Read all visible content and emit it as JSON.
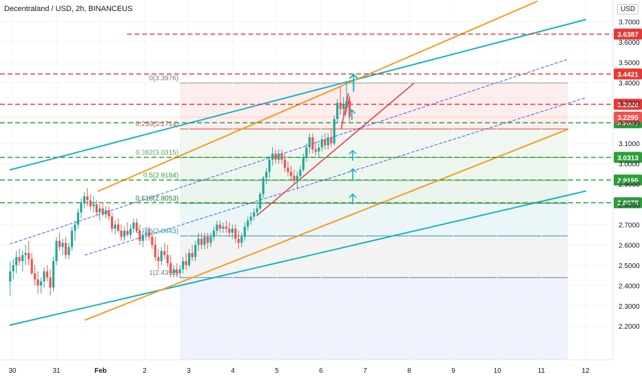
{
  "header": {
    "symbol_title": "Decentraland / USD, 2h, BINANCEUS",
    "currency_button": "USD"
  },
  "colors": {
    "bull": "#26a69a",
    "bear": "#ef5350",
    "orange": "#f29d1c",
    "teal": "#12b3c4",
    "red_dash": "#e53935",
    "green_dash": "#2e9d3a",
    "blue_dash": "#3d5afe",
    "redline": "#e6344a"
  },
  "chart_data": {
    "type": "candlestick",
    "symbol": "Decentraland / USD",
    "interval": "2h",
    "exchange": "BINANCEUS",
    "x_ticks": [
      {
        "label": "30",
        "x": 0.0
      },
      {
        "label": "31",
        "x": 1.0
      },
      {
        "label": "Feb",
        "x": 2.0
      },
      {
        "label": "2",
        "x": 3.0
      },
      {
        "label": "3",
        "x": 4.0
      },
      {
        "label": "4",
        "x": 5.0
      },
      {
        "label": "5",
        "x": 6.0
      },
      {
        "label": "6",
        "x": 7.0
      },
      {
        "label": "7",
        "x": 8.0
      },
      {
        "label": "8",
        "x": 9.0
      },
      {
        "label": "9",
        "x": 10.0
      },
      {
        "label": "10",
        "x": 11.0
      },
      {
        "label": "11",
        "x": 12.0
      },
      {
        "label": "12",
        "x": 13.0
      }
    ],
    "y_ticks": [
      2.2,
      2.3,
      2.4,
      2.5,
      2.6,
      2.7,
      2.8,
      2.9,
      3.0,
      3.1,
      3.2,
      3.3,
      3.4,
      3.5,
      3.6,
      3.7
    ],
    "ylim": [
      2.12,
      3.8
    ],
    "price_levels": [
      {
        "label": "3.6387",
        "value": 3.6387,
        "color": "#e53935",
        "style": "dashed"
      },
      {
        "label": "3.4421",
        "value": 3.4421,
        "color": "#e53935",
        "style": "dashed"
      },
      {
        "label": "3.2928",
        "value": 3.2928,
        "color": "#e53935",
        "style": "dashed"
      },
      {
        "label": "3.2021",
        "value": 3.2021,
        "color": "#2e9d3a",
        "style": "dashed"
      },
      {
        "label": "3.0313",
        "value": 3.0313,
        "color": "#2e9d3a",
        "style": "dashed"
      },
      {
        "label": "2.9195",
        "value": 2.9195,
        "color": "#2e9d3a",
        "style": "dashed"
      },
      {
        "label": "2.8078",
        "value": 2.8078,
        "color": "#2e9d3a",
        "style": "dashed"
      }
    ],
    "last_price": {
      "label": "3.2295",
      "value": 3.2295
    },
    "fib_levels": [
      {
        "label": "0(3.3976)",
        "value": 3.3976,
        "color": "#787b86"
      },
      {
        "label": "0.236(3.1714)",
        "value": 3.1714,
        "color": "#e53935"
      },
      {
        "label": "0.382(3.0315)",
        "value": 3.0315,
        "color": "#5aa05a"
      },
      {
        "label": "0.5(2.9184)",
        "value": 2.9184,
        "color": "#2e9d3a"
      },
      {
        "label": "0.618(2.8053)",
        "value": 2.8053,
        "color": "#1b7a2a"
      },
      {
        "label": "0.786(2.6443)",
        "value": 2.6443,
        "color": "#2196b0"
      },
      {
        "label": "1(2.4392)",
        "value": 2.4392,
        "color": "#787b86"
      }
    ],
    "fib_range_x": [
      3.8,
      12.6
    ],
    "trend_lines": [
      {
        "name": "teal-upper",
        "color": "#12b3c4",
        "width": 2,
        "p1": [
          -0.05,
          2.97
        ],
        "p2": [
          13.0,
          3.71
        ]
      },
      {
        "name": "teal-lower",
        "color": "#12b3c4",
        "width": 2,
        "p1": [
          -0.05,
          2.205
        ],
        "p2": [
          13.0,
          2.865
        ]
      },
      {
        "name": "orange-upper",
        "color": "#f29d1c",
        "width": 2,
        "p1": [
          1.95,
          2.865
        ],
        "p2": [
          11.9,
          3.8
        ]
      },
      {
        "name": "orange-lower",
        "color": "#f29d1c",
        "width": 2,
        "p1": [
          1.65,
          2.23
        ],
        "p2": [
          12.6,
          3.17
        ]
      },
      {
        "name": "blue-dash-1",
        "color": "#3d5afe",
        "width": 1,
        "dash": true,
        "p1": [
          -0.05,
          2.605
        ],
        "p2": [
          12.6,
          3.515
        ]
      },
      {
        "name": "blue-dash-2",
        "color": "#3d5afe",
        "width": 1,
        "dash": true,
        "p1": [
          1.65,
          2.55
        ],
        "p2": [
          13.0,
          3.325
        ]
      },
      {
        "name": "red-up",
        "color": "#e6344a",
        "width": 1.5,
        "p1": [
          5.55,
          2.745
        ],
        "p2": [
          9.1,
          3.395
        ]
      },
      {
        "name": "red-short-1",
        "color": "#e6344a",
        "width": 1.5,
        "p1": [
          7.46,
          3.175
        ],
        "p2": [
          7.62,
          3.345
        ]
      },
      {
        "name": "red-short-2",
        "color": "#e6344a",
        "width": 1.5,
        "p1": [
          7.55,
          3.24
        ],
        "p2": [
          7.65,
          3.33
        ]
      }
    ],
    "arrows": [
      {
        "x": 7.74,
        "y_from": 3.355,
        "y_to": 3.44,
        "size": "large"
      },
      {
        "x": 7.7,
        "y_from": 3.215,
        "y_to": 3.265,
        "size": "small"
      },
      {
        "x": 7.72,
        "y_from": 3.015,
        "y_to": 3.065,
        "size": "small"
      },
      {
        "x": 7.72,
        "y_from": 2.915,
        "y_to": 2.975,
        "size": "small"
      },
      {
        "x": 7.72,
        "y_from": 2.8,
        "y_to": 2.85,
        "size": "small"
      }
    ],
    "candles": [
      {
        "x": -0.05,
        "o": 2.42,
        "h": 2.52,
        "l": 2.35,
        "c": 2.47
      },
      {
        "x": 0.02,
        "o": 2.47,
        "h": 2.53,
        "l": 2.43,
        "c": 2.5
      },
      {
        "x": 0.09,
        "o": 2.5,
        "h": 2.57,
        "l": 2.46,
        "c": 2.54
      },
      {
        "x": 0.16,
        "o": 2.54,
        "h": 2.58,
        "l": 2.5,
        "c": 2.52
      },
      {
        "x": 0.23,
        "o": 2.52,
        "h": 2.57,
        "l": 2.47,
        "c": 2.55
      },
      {
        "x": 0.3,
        "o": 2.55,
        "h": 2.6,
        "l": 2.5,
        "c": 2.56
      },
      {
        "x": 0.37,
        "o": 2.56,
        "h": 2.62,
        "l": 2.5,
        "c": 2.53
      },
      {
        "x": 0.44,
        "o": 2.53,
        "h": 2.56,
        "l": 2.45,
        "c": 2.46
      },
      {
        "x": 0.51,
        "o": 2.46,
        "h": 2.5,
        "l": 2.4,
        "c": 2.43
      },
      {
        "x": 0.58,
        "o": 2.43,
        "h": 2.47,
        "l": 2.36,
        "c": 2.4
      },
      {
        "x": 0.65,
        "o": 2.4,
        "h": 2.44,
        "l": 2.36,
        "c": 2.42
      },
      {
        "x": 0.72,
        "o": 2.42,
        "h": 2.49,
        "l": 2.39,
        "c": 2.47
      },
      {
        "x": 0.79,
        "o": 2.47,
        "h": 2.5,
        "l": 2.42,
        "c": 2.44
      },
      {
        "x": 0.86,
        "o": 2.44,
        "h": 2.48,
        "l": 2.35,
        "c": 2.39
      },
      {
        "x": 0.93,
        "o": 2.39,
        "h": 2.54,
        "l": 2.37,
        "c": 2.52
      },
      {
        "x": 1.0,
        "o": 2.52,
        "h": 2.64,
        "l": 2.5,
        "c": 2.62
      },
      {
        "x": 1.07,
        "o": 2.62,
        "h": 2.66,
        "l": 2.57,
        "c": 2.59
      },
      {
        "x": 1.14,
        "o": 2.59,
        "h": 2.63,
        "l": 2.55,
        "c": 2.61
      },
      {
        "x": 1.21,
        "o": 2.61,
        "h": 2.64,
        "l": 2.53,
        "c": 2.55
      },
      {
        "x": 1.28,
        "o": 2.55,
        "h": 2.61,
        "l": 2.53,
        "c": 2.59
      },
      {
        "x": 1.35,
        "o": 2.59,
        "h": 2.69,
        "l": 2.57,
        "c": 2.67
      },
      {
        "x": 1.42,
        "o": 2.67,
        "h": 2.72,
        "l": 2.62,
        "c": 2.7
      },
      {
        "x": 1.49,
        "o": 2.7,
        "h": 2.78,
        "l": 2.68,
        "c": 2.76
      },
      {
        "x": 1.56,
        "o": 2.76,
        "h": 2.83,
        "l": 2.73,
        "c": 2.81
      },
      {
        "x": 1.63,
        "o": 2.81,
        "h": 2.86,
        "l": 2.78,
        "c": 2.84
      },
      {
        "x": 1.7,
        "o": 2.84,
        "h": 2.88,
        "l": 2.79,
        "c": 2.82
      },
      {
        "x": 1.77,
        "o": 2.82,
        "h": 2.85,
        "l": 2.77,
        "c": 2.79
      },
      {
        "x": 1.84,
        "o": 2.79,
        "h": 2.84,
        "l": 2.76,
        "c": 2.8
      },
      {
        "x": 1.91,
        "o": 2.8,
        "h": 2.82,
        "l": 2.74,
        "c": 2.76
      },
      {
        "x": 1.98,
        "o": 2.76,
        "h": 2.8,
        "l": 2.72,
        "c": 2.78
      },
      {
        "x": 2.05,
        "o": 2.78,
        "h": 2.81,
        "l": 2.74,
        "c": 2.75
      },
      {
        "x": 2.12,
        "o": 2.75,
        "h": 2.79,
        "l": 2.73,
        "c": 2.77
      },
      {
        "x": 2.19,
        "o": 2.77,
        "h": 2.79,
        "l": 2.72,
        "c": 2.74
      },
      {
        "x": 2.26,
        "o": 2.74,
        "h": 2.76,
        "l": 2.66,
        "c": 2.68
      },
      {
        "x": 2.33,
        "o": 2.68,
        "h": 2.72,
        "l": 2.65,
        "c": 2.7
      },
      {
        "x": 2.4,
        "o": 2.7,
        "h": 2.73,
        "l": 2.66,
        "c": 2.67
      },
      {
        "x": 2.47,
        "o": 2.67,
        "h": 2.7,
        "l": 2.62,
        "c": 2.64
      },
      {
        "x": 2.54,
        "o": 2.64,
        "h": 2.69,
        "l": 2.62,
        "c": 2.67
      },
      {
        "x": 2.61,
        "o": 2.67,
        "h": 2.71,
        "l": 2.64,
        "c": 2.65
      },
      {
        "x": 2.68,
        "o": 2.65,
        "h": 2.7,
        "l": 2.63,
        "c": 2.68
      },
      {
        "x": 2.75,
        "o": 2.68,
        "h": 2.73,
        "l": 2.66,
        "c": 2.71
      },
      {
        "x": 2.82,
        "o": 2.71,
        "h": 2.73,
        "l": 2.66,
        "c": 2.67
      },
      {
        "x": 2.89,
        "o": 2.67,
        "h": 2.7,
        "l": 2.6,
        "c": 2.62
      },
      {
        "x": 2.96,
        "o": 2.62,
        "h": 2.67,
        "l": 2.59,
        "c": 2.65
      },
      {
        "x": 3.03,
        "o": 2.65,
        "h": 2.69,
        "l": 2.62,
        "c": 2.66
      },
      {
        "x": 3.1,
        "o": 2.66,
        "h": 2.69,
        "l": 2.62,
        "c": 2.64
      },
      {
        "x": 3.17,
        "o": 2.64,
        "h": 2.67,
        "l": 2.58,
        "c": 2.6
      },
      {
        "x": 3.24,
        "o": 2.6,
        "h": 2.64,
        "l": 2.52,
        "c": 2.54
      },
      {
        "x": 3.31,
        "o": 2.54,
        "h": 2.58,
        "l": 2.48,
        "c": 2.52
      },
      {
        "x": 3.38,
        "o": 2.52,
        "h": 2.59,
        "l": 2.5,
        "c": 2.57
      },
      {
        "x": 3.45,
        "o": 2.57,
        "h": 2.61,
        "l": 2.53,
        "c": 2.55
      },
      {
        "x": 3.52,
        "o": 2.55,
        "h": 2.6,
        "l": 2.49,
        "c": 2.51
      },
      {
        "x": 3.59,
        "o": 2.51,
        "h": 2.55,
        "l": 2.44,
        "c": 2.46
      },
      {
        "x": 3.66,
        "o": 2.46,
        "h": 2.5,
        "l": 2.44,
        "c": 2.48
      },
      {
        "x": 3.73,
        "o": 2.48,
        "h": 2.51,
        "l": 2.44,
        "c": 2.46
      },
      {
        "x": 3.8,
        "o": 2.46,
        "h": 2.5,
        "l": 2.44,
        "c": 2.48
      },
      {
        "x": 3.87,
        "o": 2.48,
        "h": 2.54,
        "l": 2.46,
        "c": 2.52
      },
      {
        "x": 3.94,
        "o": 2.52,
        "h": 2.56,
        "l": 2.48,
        "c": 2.5
      },
      {
        "x": 4.01,
        "o": 2.5,
        "h": 2.58,
        "l": 2.49,
        "c": 2.56
      },
      {
        "x": 4.08,
        "o": 2.56,
        "h": 2.6,
        "l": 2.52,
        "c": 2.54
      },
      {
        "x": 4.15,
        "o": 2.54,
        "h": 2.62,
        "l": 2.52,
        "c": 2.6
      },
      {
        "x": 4.22,
        "o": 2.6,
        "h": 2.66,
        "l": 2.57,
        "c": 2.63
      },
      {
        "x": 4.29,
        "o": 2.63,
        "h": 2.66,
        "l": 2.58,
        "c": 2.6
      },
      {
        "x": 4.36,
        "o": 2.6,
        "h": 2.66,
        "l": 2.58,
        "c": 2.64
      },
      {
        "x": 4.43,
        "o": 2.64,
        "h": 2.66,
        "l": 2.58,
        "c": 2.61
      },
      {
        "x": 4.5,
        "o": 2.61,
        "h": 2.66,
        "l": 2.59,
        "c": 2.64
      },
      {
        "x": 4.57,
        "o": 2.64,
        "h": 2.69,
        "l": 2.62,
        "c": 2.67
      },
      {
        "x": 4.64,
        "o": 2.67,
        "h": 2.72,
        "l": 2.65,
        "c": 2.7
      },
      {
        "x": 4.71,
        "o": 2.7,
        "h": 2.72,
        "l": 2.66,
        "c": 2.68
      },
      {
        "x": 4.78,
        "o": 2.68,
        "h": 2.71,
        "l": 2.66,
        "c": 2.69
      },
      {
        "x": 4.85,
        "o": 2.69,
        "h": 2.72,
        "l": 2.66,
        "c": 2.68
      },
      {
        "x": 4.92,
        "o": 2.68,
        "h": 2.71,
        "l": 2.64,
        "c": 2.66
      },
      {
        "x": 4.99,
        "o": 2.66,
        "h": 2.7,
        "l": 2.63,
        "c": 2.68
      },
      {
        "x": 5.06,
        "o": 2.68,
        "h": 2.7,
        "l": 2.61,
        "c": 2.63
      },
      {
        "x": 5.13,
        "o": 2.63,
        "h": 2.67,
        "l": 2.58,
        "c": 2.61
      },
      {
        "x": 5.2,
        "o": 2.61,
        "h": 2.66,
        "l": 2.59,
        "c": 2.64
      },
      {
        "x": 5.27,
        "o": 2.64,
        "h": 2.71,
        "l": 2.62,
        "c": 2.69
      },
      {
        "x": 5.34,
        "o": 2.69,
        "h": 2.74,
        "l": 2.67,
        "c": 2.72
      },
      {
        "x": 5.41,
        "o": 2.72,
        "h": 2.76,
        "l": 2.7,
        "c": 2.74
      },
      {
        "x": 5.48,
        "o": 2.74,
        "h": 2.78,
        "l": 2.72,
        "c": 2.76
      },
      {
        "x": 5.55,
        "o": 2.76,
        "h": 2.8,
        "l": 2.74,
        "c": 2.78
      },
      {
        "x": 5.62,
        "o": 2.78,
        "h": 2.86,
        "l": 2.77,
        "c": 2.85
      },
      {
        "x": 5.69,
        "o": 2.85,
        "h": 2.94,
        "l": 2.83,
        "c": 2.93
      },
      {
        "x": 5.76,
        "o": 2.93,
        "h": 2.98,
        "l": 2.9,
        "c": 2.96
      },
      {
        "x": 5.83,
        "o": 2.96,
        "h": 3.04,
        "l": 2.93,
        "c": 3.02
      },
      {
        "x": 5.9,
        "o": 3.02,
        "h": 3.08,
        "l": 2.99,
        "c": 3.05
      },
      {
        "x": 5.97,
        "o": 3.05,
        "h": 3.07,
        "l": 3.0,
        "c": 3.02
      },
      {
        "x": 6.04,
        "o": 3.02,
        "h": 3.07,
        "l": 3.0,
        "c": 3.05
      },
      {
        "x": 6.11,
        "o": 3.05,
        "h": 3.07,
        "l": 3.0,
        "c": 3.02
      },
      {
        "x": 6.18,
        "o": 3.02,
        "h": 3.05,
        "l": 2.96,
        "c": 2.98
      },
      {
        "x": 6.25,
        "o": 2.98,
        "h": 3.01,
        "l": 2.94,
        "c": 2.96
      },
      {
        "x": 6.32,
        "o": 2.96,
        "h": 2.99,
        "l": 2.92,
        "c": 2.94
      },
      {
        "x": 6.39,
        "o": 2.94,
        "h": 2.97,
        "l": 2.9,
        "c": 2.92
      },
      {
        "x": 6.46,
        "o": 2.92,
        "h": 2.96,
        "l": 2.88,
        "c": 2.94
      },
      {
        "x": 6.53,
        "o": 2.94,
        "h": 2.99,
        "l": 2.92,
        "c": 2.97
      },
      {
        "x": 6.6,
        "o": 2.97,
        "h": 3.05,
        "l": 2.96,
        "c": 3.03
      },
      {
        "x": 6.67,
        "o": 3.03,
        "h": 3.1,
        "l": 3.01,
        "c": 3.08
      },
      {
        "x": 6.74,
        "o": 3.08,
        "h": 3.15,
        "l": 3.05,
        "c": 3.13
      },
      {
        "x": 6.81,
        "o": 3.13,
        "h": 3.15,
        "l": 3.05,
        "c": 3.07
      },
      {
        "x": 6.88,
        "o": 3.07,
        "h": 3.11,
        "l": 3.04,
        "c": 3.06
      },
      {
        "x": 6.95,
        "o": 3.06,
        "h": 3.1,
        "l": 3.03,
        "c": 3.08
      },
      {
        "x": 7.02,
        "o": 3.08,
        "h": 3.14,
        "l": 3.06,
        "c": 3.12
      },
      {
        "x": 7.09,
        "o": 3.12,
        "h": 3.15,
        "l": 3.07,
        "c": 3.09
      },
      {
        "x": 7.16,
        "o": 3.09,
        "h": 3.15,
        "l": 3.07,
        "c": 3.13
      },
      {
        "x": 7.23,
        "o": 3.13,
        "h": 3.17,
        "l": 3.08,
        "c": 3.1
      },
      {
        "x": 7.3,
        "o": 3.1,
        "h": 3.24,
        "l": 3.09,
        "c": 3.22
      },
      {
        "x": 7.37,
        "o": 3.22,
        "h": 3.32,
        "l": 3.2,
        "c": 3.3
      },
      {
        "x": 7.44,
        "o": 3.3,
        "h": 3.38,
        "l": 3.24,
        "c": 3.27
      },
      {
        "x": 7.51,
        "o": 3.27,
        "h": 3.33,
        "l": 3.23,
        "c": 3.29
      },
      {
        "x": 7.58,
        "o": 3.29,
        "h": 3.4,
        "l": 3.26,
        "c": 3.31
      },
      {
        "x": 7.65,
        "o": 3.31,
        "h": 3.33,
        "l": 3.21,
        "c": 3.23
      }
    ]
  }
}
